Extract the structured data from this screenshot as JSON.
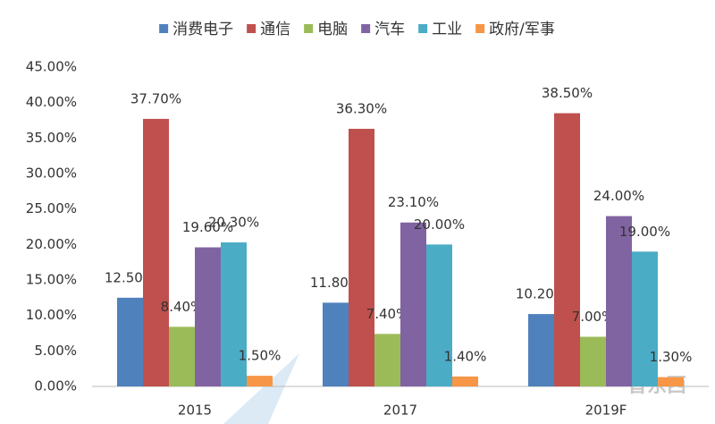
{
  "chart_data": {
    "type": "bar",
    "categories": [
      "2015",
      "2017",
      "2019F"
    ],
    "series": [
      {
        "name": "消费电子",
        "color": "#4f81bd",
        "values": [
          12.5,
          11.8,
          10.2
        ],
        "value_labels": [
          "12.50%",
          "11.80%",
          "10.20%"
        ]
      },
      {
        "name": "通信",
        "color": "#c0504d",
        "values": [
          37.7,
          36.3,
          38.5
        ],
        "value_labels": [
          "37.70%",
          "36.30%",
          "38.50%"
        ]
      },
      {
        "name": "电脑",
        "color": "#9bbb59",
        "values": [
          8.4,
          7.4,
          7.0
        ],
        "value_labels": [
          "8.40%",
          "7.40%",
          "7.00%"
        ]
      },
      {
        "name": "汽车",
        "color": "#8064a2",
        "values": [
          19.6,
          23.1,
          24.0
        ],
        "value_labels": [
          "19.60%",
          "23.10%",
          "24.00%"
        ]
      },
      {
        "name": "工业",
        "color": "#4bacc6",
        "values": [
          20.3,
          20.0,
          19.0
        ],
        "value_labels": [
          "20.30%",
          "20.00%",
          "19.00%"
        ]
      },
      {
        "name": "政府/军事",
        "color": "#f79646",
        "values": [
          1.5,
          1.4,
          1.3
        ],
        "value_labels": [
          "1.50%",
          "1.40%",
          "1.30%"
        ]
      }
    ],
    "ylim": [
      0,
      45
    ],
    "yticks": [
      {
        "value": 0,
        "label": "0.00%"
      },
      {
        "value": 5,
        "label": "5.00%"
      },
      {
        "value": 10,
        "label": "10.00%"
      },
      {
        "value": 15,
        "label": "15.00%"
      },
      {
        "value": 20,
        "label": "20.00%"
      },
      {
        "value": 25,
        "label": "25.00%"
      },
      {
        "value": 30,
        "label": "30.00%"
      },
      {
        "value": 35,
        "label": "35.00%"
      },
      {
        "value": 40,
        "label": "40.00%"
      },
      {
        "value": 45,
        "label": "45.00%"
      }
    ],
    "legend": "top",
    "grid": false
  },
  "watermark": "智东西"
}
